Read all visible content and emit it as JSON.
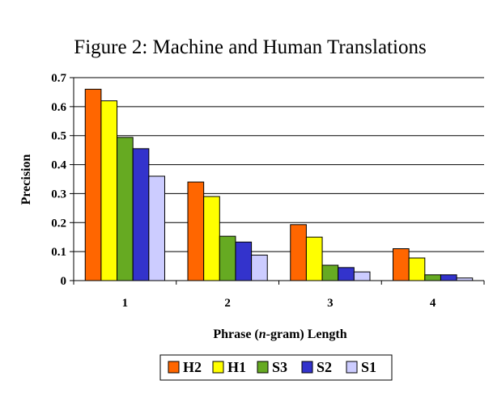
{
  "chart_data": {
    "type": "bar",
    "title": "Figure 2: Machine and Human Translations",
    "xlabel_parts": [
      "Phrase (",
      "n",
      "-gram) Length"
    ],
    "ylabel": "Precision",
    "categories": [
      "1",
      "2",
      "3",
      "4"
    ],
    "ylim": [
      0,
      0.7
    ],
    "yticks": [
      "0",
      "0.1",
      "0.2",
      "0.3",
      "0.4",
      "0.5",
      "0.6",
      "0.7"
    ],
    "grid": true,
    "legend_position": "bottom",
    "series": [
      {
        "name": "H2",
        "color": "#ff6600",
        "values": [
          0.66,
          0.34,
          0.193,
          0.11
        ]
      },
      {
        "name": "H1",
        "color": "#ffff00",
        "values": [
          0.62,
          0.29,
          0.15,
          0.078
        ]
      },
      {
        "name": "S3",
        "color": "#66aa22",
        "values": [
          0.494,
          0.153,
          0.053,
          0.02
        ]
      },
      {
        "name": "S2",
        "color": "#3333cc",
        "values": [
          0.455,
          0.133,
          0.045,
          0.02
        ]
      },
      {
        "name": "S1",
        "color": "#ccccff",
        "values": [
          0.36,
          0.088,
          0.03,
          0.009
        ]
      }
    ]
  }
}
